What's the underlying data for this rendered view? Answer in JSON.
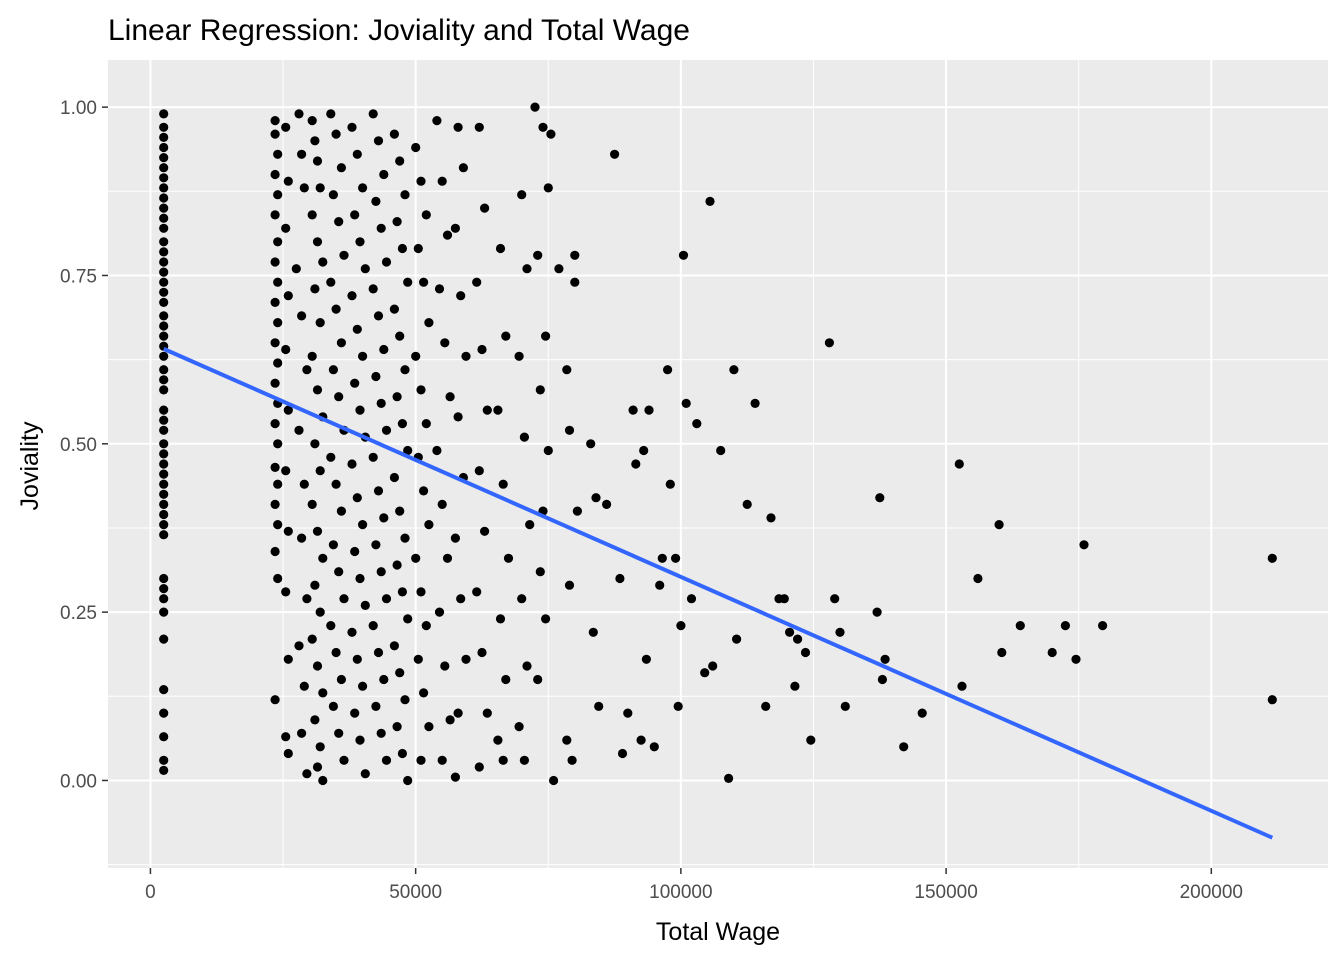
{
  "chart_data": {
    "type": "scatter",
    "title": "Linear Regression: Joviality and Total Wage",
    "xlabel": "Total Wage",
    "ylabel": "Joviality",
    "xlim": [
      -8000,
      222000
    ],
    "ylim": [
      -0.13,
      1.07
    ],
    "x_ticks": [
      0,
      50000,
      100000,
      150000,
      200000
    ],
    "x_tick_labels": [
      "0",
      "50000",
      "100000",
      "150000",
      "200000"
    ],
    "y_ticks": [
      0,
      0.25,
      0.5,
      0.75,
      1.0
    ],
    "y_tick_labels": [
      "0.00",
      "0.25",
      "0.50",
      "0.75",
      "1.00"
    ],
    "grid": true,
    "legend": "none",
    "colors": {
      "panel": "#ebebeb",
      "grid": "#ffffff",
      "points": "#000000",
      "fit_line": "#3366ff"
    },
    "fit_line": {
      "x": [
        2500,
        211500
      ],
      "y": [
        0.641,
        -0.085
      ]
    },
    "points": [
      [
        2500,
        0.99
      ],
      [
        2500,
        0.97
      ],
      [
        2500,
        0.955
      ],
      [
        2500,
        0.94
      ],
      [
        2500,
        0.925
      ],
      [
        2500,
        0.91
      ],
      [
        2500,
        0.895
      ],
      [
        2500,
        0.88
      ],
      [
        2500,
        0.865
      ],
      [
        2500,
        0.85
      ],
      [
        2500,
        0.835
      ],
      [
        2500,
        0.82
      ],
      [
        2500,
        0.8
      ],
      [
        2500,
        0.785
      ],
      [
        2500,
        0.77
      ],
      [
        2500,
        0.755
      ],
      [
        2500,
        0.74
      ],
      [
        2500,
        0.725
      ],
      [
        2500,
        0.71
      ],
      [
        2500,
        0.69
      ],
      [
        2500,
        0.675
      ],
      [
        2500,
        0.66
      ],
      [
        2500,
        0.645
      ],
      [
        2500,
        0.63
      ],
      [
        2500,
        0.61
      ],
      [
        2500,
        0.595
      ],
      [
        2500,
        0.58
      ],
      [
        2500,
        0.55
      ],
      [
        2500,
        0.535
      ],
      [
        2500,
        0.52
      ],
      [
        2500,
        0.5
      ],
      [
        2500,
        0.485
      ],
      [
        2500,
        0.47
      ],
      [
        2500,
        0.455
      ],
      [
        2500,
        0.44
      ],
      [
        2500,
        0.425
      ],
      [
        2500,
        0.41
      ],
      [
        2500,
        0.395
      ],
      [
        2500,
        0.38
      ],
      [
        2500,
        0.365
      ],
      [
        2500,
        0.3
      ],
      [
        2500,
        0.285
      ],
      [
        2500,
        0.27
      ],
      [
        2500,
        0.25
      ],
      [
        2500,
        0.21
      ],
      [
        2500,
        0.135
      ],
      [
        2500,
        0.1
      ],
      [
        2500,
        0.065
      ],
      [
        2500,
        0.03
      ],
      [
        2500,
        0.015
      ],
      [
        23500,
        0.98
      ],
      [
        23500,
        0.96
      ],
      [
        24000,
        0.93
      ],
      [
        23500,
        0.9
      ],
      [
        24000,
        0.87
      ],
      [
        23500,
        0.84
      ],
      [
        24000,
        0.8
      ],
      [
        23500,
        0.77
      ],
      [
        24000,
        0.74
      ],
      [
        23500,
        0.71
      ],
      [
        24000,
        0.68
      ],
      [
        23500,
        0.65
      ],
      [
        24000,
        0.62
      ],
      [
        23500,
        0.59
      ],
      [
        24000,
        0.56
      ],
      [
        23500,
        0.53
      ],
      [
        24000,
        0.5
      ],
      [
        23500,
        0.465
      ],
      [
        24000,
        0.44
      ],
      [
        23500,
        0.41
      ],
      [
        24000,
        0.38
      ],
      [
        23500,
        0.34
      ],
      [
        24000,
        0.3
      ],
      [
        23500,
        0.12
      ],
      [
        25500,
        0.97
      ],
      [
        26000,
        0.89
      ],
      [
        25500,
        0.82
      ],
      [
        26000,
        0.72
      ],
      [
        25500,
        0.64
      ],
      [
        26000,
        0.55
      ],
      [
        25500,
        0.46
      ],
      [
        26000,
        0.37
      ],
      [
        25500,
        0.28
      ],
      [
        26000,
        0.18
      ],
      [
        25500,
        0.065
      ],
      [
        26000,
        0.04
      ],
      [
        28000,
        0.99
      ],
      [
        28500,
        0.93
      ],
      [
        29000,
        0.88
      ],
      [
        27500,
        0.76
      ],
      [
        28500,
        0.69
      ],
      [
        29500,
        0.61
      ],
      [
        28000,
        0.52
      ],
      [
        29000,
        0.44
      ],
      [
        28500,
        0.36
      ],
      [
        29500,
        0.27
      ],
      [
        28000,
        0.2
      ],
      [
        29000,
        0.14
      ],
      [
        28500,
        0.07
      ],
      [
        29500,
        0.01
      ],
      [
        30500,
        0.98
      ],
      [
        31000,
        0.95
      ],
      [
        31500,
        0.92
      ],
      [
        32000,
        0.88
      ],
      [
        30500,
        0.84
      ],
      [
        31500,
        0.8
      ],
      [
        32500,
        0.77
      ],
      [
        31000,
        0.73
      ],
      [
        32000,
        0.68
      ],
      [
        30500,
        0.63
      ],
      [
        31500,
        0.58
      ],
      [
        32500,
        0.54
      ],
      [
        31000,
        0.5
      ],
      [
        32000,
        0.46
      ],
      [
        30500,
        0.41
      ],
      [
        31500,
        0.37
      ],
      [
        32500,
        0.33
      ],
      [
        31000,
        0.29
      ],
      [
        32000,
        0.25
      ],
      [
        30500,
        0.21
      ],
      [
        31500,
        0.17
      ],
      [
        32500,
        0.13
      ],
      [
        31000,
        0.09
      ],
      [
        32000,
        0.05
      ],
      [
        32500,
        0.0
      ],
      [
        31500,
        0.02
      ],
      [
        34000,
        0.99
      ],
      [
        35000,
        0.96
      ],
      [
        36000,
        0.91
      ],
      [
        34500,
        0.87
      ],
      [
        35500,
        0.83
      ],
      [
        36500,
        0.78
      ],
      [
        34000,
        0.74
      ],
      [
        35000,
        0.7
      ],
      [
        36000,
        0.65
      ],
      [
        34500,
        0.61
      ],
      [
        35500,
        0.57
      ],
      [
        36500,
        0.52
      ],
      [
        34000,
        0.48
      ],
      [
        35000,
        0.44
      ],
      [
        36000,
        0.4
      ],
      [
        34500,
        0.35
      ],
      [
        35500,
        0.31
      ],
      [
        36500,
        0.27
      ],
      [
        34000,
        0.23
      ],
      [
        35000,
        0.19
      ],
      [
        36000,
        0.15
      ],
      [
        34500,
        0.11
      ],
      [
        35500,
        0.07
      ],
      [
        36500,
        0.03
      ],
      [
        38000,
        0.97
      ],
      [
        39000,
        0.93
      ],
      [
        40000,
        0.88
      ],
      [
        38500,
        0.84
      ],
      [
        39500,
        0.8
      ],
      [
        40500,
        0.76
      ],
      [
        38000,
        0.72
      ],
      [
        39000,
        0.67
      ],
      [
        40000,
        0.63
      ],
      [
        38500,
        0.59
      ],
      [
        39500,
        0.55
      ],
      [
        40500,
        0.51
      ],
      [
        38000,
        0.47
      ],
      [
        39000,
        0.42
      ],
      [
        40000,
        0.38
      ],
      [
        38500,
        0.34
      ],
      [
        39500,
        0.3
      ],
      [
        40500,
        0.26
      ],
      [
        38000,
        0.22
      ],
      [
        39000,
        0.18
      ],
      [
        40000,
        0.14
      ],
      [
        38500,
        0.1
      ],
      [
        39500,
        0.06
      ],
      [
        40500,
        0.01
      ],
      [
        42000,
        0.99
      ],
      [
        43000,
        0.95
      ],
      [
        44000,
        0.9
      ],
      [
        42500,
        0.86
      ],
      [
        43500,
        0.82
      ],
      [
        44500,
        0.77
      ],
      [
        42000,
        0.73
      ],
      [
        43000,
        0.69
      ],
      [
        44000,
        0.64
      ],
      [
        42500,
        0.6
      ],
      [
        43500,
        0.56
      ],
      [
        44500,
        0.52
      ],
      [
        42000,
        0.48
      ],
      [
        43000,
        0.43
      ],
      [
        44000,
        0.39
      ],
      [
        42500,
        0.35
      ],
      [
        43500,
        0.31
      ],
      [
        44500,
        0.27
      ],
      [
        42000,
        0.23
      ],
      [
        43000,
        0.19
      ],
      [
        44000,
        0.15
      ],
      [
        42500,
        0.11
      ],
      [
        43500,
        0.07
      ],
      [
        44500,
        0.03
      ],
      [
        46000,
        0.96
      ],
      [
        47000,
        0.92
      ],
      [
        48000,
        0.87
      ],
      [
        46500,
        0.83
      ],
      [
        47500,
        0.79
      ],
      [
        48500,
        0.74
      ],
      [
        46000,
        0.7
      ],
      [
        47000,
        0.66
      ],
      [
        48000,
        0.61
      ],
      [
        46500,
        0.57
      ],
      [
        47500,
        0.53
      ],
      [
        48500,
        0.49
      ],
      [
        46000,
        0.45
      ],
      [
        47000,
        0.4
      ],
      [
        48000,
        0.36
      ],
      [
        46500,
        0.32
      ],
      [
        47500,
        0.28
      ],
      [
        48500,
        0.24
      ],
      [
        46000,
        0.2
      ],
      [
        47000,
        0.16
      ],
      [
        48000,
        0.12
      ],
      [
        46500,
        0.08
      ],
      [
        47500,
        0.04
      ],
      [
        48500,
        0.0
      ],
      [
        50000,
        0.94
      ],
      [
        51000,
        0.89
      ],
      [
        52000,
        0.84
      ],
      [
        50500,
        0.79
      ],
      [
        51500,
        0.74
      ],
      [
        52500,
        0.68
      ],
      [
        50000,
        0.63
      ],
      [
        51000,
        0.58
      ],
      [
        52000,
        0.53
      ],
      [
        50500,
        0.48
      ],
      [
        51500,
        0.43
      ],
      [
        52500,
        0.38
      ],
      [
        50000,
        0.33
      ],
      [
        51000,
        0.28
      ],
      [
        52000,
        0.23
      ],
      [
        50500,
        0.18
      ],
      [
        51500,
        0.13
      ],
      [
        52500,
        0.08
      ],
      [
        51000,
        0.03
      ],
      [
        54000,
        0.98
      ],
      [
        55000,
        0.89
      ],
      [
        56000,
        0.81
      ],
      [
        54500,
        0.73
      ],
      [
        55500,
        0.65
      ],
      [
        56500,
        0.57
      ],
      [
        54000,
        0.49
      ],
      [
        55000,
        0.41
      ],
      [
        56000,
        0.33
      ],
      [
        54500,
        0.25
      ],
      [
        55500,
        0.17
      ],
      [
        56500,
        0.09
      ],
      [
        55000,
        0.03
      ],
      [
        58000,
        0.97
      ],
      [
        59000,
        0.91
      ],
      [
        57500,
        0.82
      ],
      [
        58500,
        0.72
      ],
      [
        59500,
        0.63
      ],
      [
        58000,
        0.54
      ],
      [
        59000,
        0.45
      ],
      [
        57500,
        0.36
      ],
      [
        58500,
        0.27
      ],
      [
        59500,
        0.18
      ],
      [
        58000,
        0.1
      ],
      [
        57500,
        0.005
      ],
      [
        62000,
        0.97
      ],
      [
        63000,
        0.85
      ],
      [
        61500,
        0.74
      ],
      [
        62500,
        0.64
      ],
      [
        63500,
        0.55
      ],
      [
        62000,
        0.46
      ],
      [
        63000,
        0.37
      ],
      [
        61500,
        0.28
      ],
      [
        62500,
        0.19
      ],
      [
        63500,
        0.1
      ],
      [
        62000,
        0.02
      ],
      [
        66000,
        0.79
      ],
      [
        67000,
        0.66
      ],
      [
        65500,
        0.55
      ],
      [
        66500,
        0.44
      ],
      [
        67500,
        0.33
      ],
      [
        66000,
        0.24
      ],
      [
        67000,
        0.15
      ],
      [
        65500,
        0.06
      ],
      [
        66500,
        0.03
      ],
      [
        70000,
        0.87
      ],
      [
        71000,
        0.76
      ],
      [
        69500,
        0.63
      ],
      [
        70500,
        0.51
      ],
      [
        71500,
        0.38
      ],
      [
        70000,
        0.27
      ],
      [
        71000,
        0.17
      ],
      [
        69500,
        0.08
      ],
      [
        70500,
        0.03
      ],
      [
        72500,
        1.0
      ],
      [
        74000,
        0.97
      ],
      [
        75500,
        0.96
      ],
      [
        75000,
        0.88
      ],
      [
        73000,
        0.78
      ],
      [
        74500,
        0.66
      ],
      [
        73500,
        0.58
      ],
      [
        75000,
        0.49
      ],
      [
        74000,
        0.4
      ],
      [
        73500,
        0.31
      ],
      [
        74500,
        0.24
      ],
      [
        73000,
        0.15
      ],
      [
        76000,
        0.0
      ],
      [
        77000,
        0.76
      ],
      [
        78500,
        0.61
      ],
      [
        79000,
        0.52
      ],
      [
        80000,
        0.74
      ],
      [
        80500,
        0.4
      ],
      [
        79000,
        0.29
      ],
      [
        78500,
        0.06
      ],
      [
        79500,
        0.03
      ],
      [
        80000,
        0.78
      ],
      [
        83000,
        0.5
      ],
      [
        84000,
        0.42
      ],
      [
        83500,
        0.22
      ],
      [
        84500,
        0.11
      ],
      [
        86000,
        0.41
      ],
      [
        87500,
        0.93
      ],
      [
        88500,
        0.3
      ],
      [
        89000,
        0.04
      ],
      [
        90000,
        0.1
      ],
      [
        91000,
        0.55
      ],
      [
        91500,
        0.47
      ],
      [
        92500,
        0.06
      ],
      [
        93000,
        0.49
      ],
      [
        93500,
        0.18
      ],
      [
        94000,
        0.55
      ],
      [
        95000,
        0.05
      ],
      [
        96000,
        0.29
      ],
      [
        96500,
        0.33
      ],
      [
        97500,
        0.61
      ],
      [
        98000,
        0.44
      ],
      [
        99000,
        0.33
      ],
      [
        99500,
        0.11
      ],
      [
        100000,
        0.23
      ],
      [
        100500,
        0.78
      ],
      [
        101000,
        0.56
      ],
      [
        102000,
        0.27
      ],
      [
        103000,
        0.53
      ],
      [
        104500,
        0.16
      ],
      [
        105500,
        0.86
      ],
      [
        106000,
        0.17
      ],
      [
        107500,
        0.49
      ],
      [
        109000,
        0.003
      ],
      [
        110000,
        0.61
      ],
      [
        110500,
        0.21
      ],
      [
        112500,
        0.41
      ],
      [
        114000,
        0.56
      ],
      [
        116000,
        0.11
      ],
      [
        117000,
        0.39
      ],
      [
        118500,
        0.27
      ],
      [
        119500,
        0.27
      ],
      [
        120500,
        0.22
      ],
      [
        121500,
        0.14
      ],
      [
        122000,
        0.21
      ],
      [
        123500,
        0.19
      ],
      [
        124500,
        0.06
      ],
      [
        128000,
        0.65
      ],
      [
        129000,
        0.27
      ],
      [
        130000,
        0.22
      ],
      [
        131000,
        0.11
      ],
      [
        137000,
        0.25
      ],
      [
        137500,
        0.42
      ],
      [
        138000,
        0.15
      ],
      [
        138500,
        0.18
      ],
      [
        142000,
        0.05
      ],
      [
        145500,
        0.1
      ],
      [
        152500,
        0.47
      ],
      [
        153000,
        0.14
      ],
      [
        156000,
        0.3
      ],
      [
        160000,
        0.38
      ],
      [
        160500,
        0.19
      ],
      [
        164000,
        0.23
      ],
      [
        170000,
        0.19
      ],
      [
        172500,
        0.23
      ],
      [
        174500,
        0.18
      ],
      [
        176000,
        0.35
      ],
      [
        179500,
        0.23
      ],
      [
        211500,
        0.33
      ],
      [
        211500,
        0.12
      ]
    ]
  }
}
